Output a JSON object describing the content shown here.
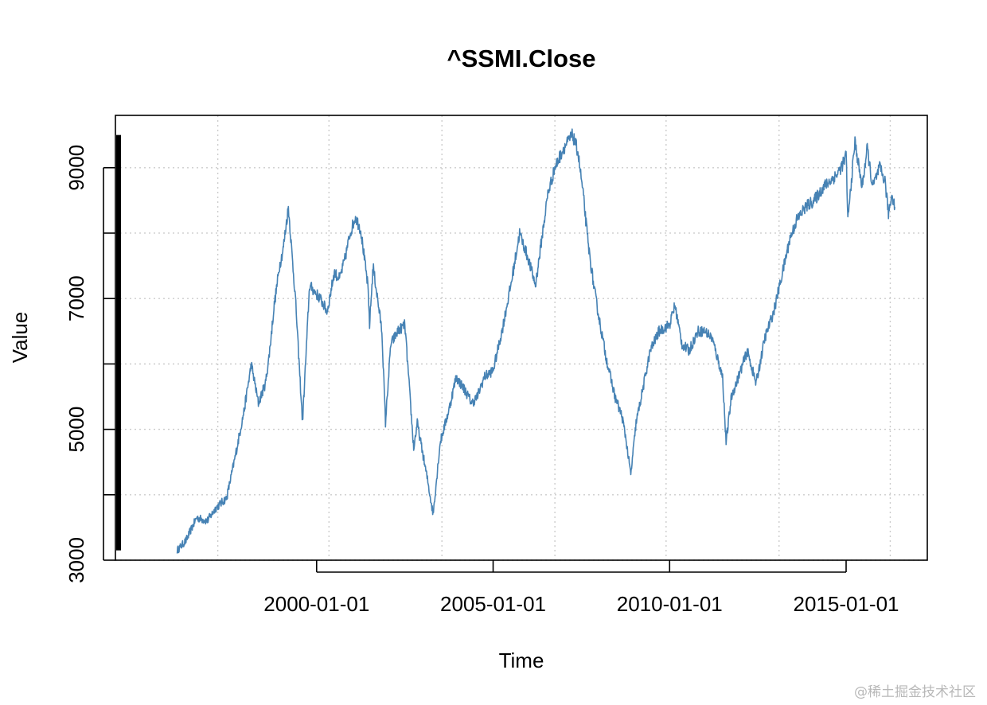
{
  "chart_data": {
    "type": "line",
    "title": "^SSMI.Close",
    "xlabel": "Time",
    "ylabel": "Value",
    "x_ticks": [
      "2000-01-01",
      "2005-01-01",
      "2010-01-01",
      "2015-01-01"
    ],
    "y_ticks": [
      "3000",
      "5000",
      "7000",
      "9000"
    ],
    "xlim": [
      1994.3,
      2017.3
    ],
    "ylim": [
      3000,
      9800
    ],
    "grid": true,
    "line_color": "#4682B4",
    "series": [
      {
        "name": "^SSMI.Close",
        "x": [
          1996.05,
          1996.3,
          1996.6,
          1996.9,
          1997.15,
          1997.45,
          1997.7,
          1997.95,
          1998.15,
          1998.35,
          1998.55,
          1998.65,
          1998.8,
          1998.95,
          1999.05,
          1999.2,
          1999.4,
          1999.6,
          1999.8,
          1999.95,
          2000.1,
          2000.3,
          2000.5,
          2000.65,
          2000.8,
          2000.95,
          2001.1,
          2001.25,
          2001.45,
          2001.5,
          2001.6,
          2001.75,
          2001.85,
          2001.95,
          2002.1,
          2002.3,
          2002.5,
          2002.75,
          2002.85,
          2003.05,
          2003.15,
          2003.3,
          2003.5,
          2003.75,
          2003.95,
          2004.2,
          2004.4,
          2004.55,
          2004.75,
          2005.0,
          2005.25,
          2005.5,
          2005.75,
          2006.0,
          2006.2,
          2006.4,
          2006.55,
          2006.75,
          2007.0,
          2007.25,
          2007.4,
          2007.55,
          2007.7,
          2007.85,
          2008.0,
          2008.2,
          2008.45,
          2008.65,
          2008.75,
          2008.9,
          2009.05,
          2009.2,
          2009.45,
          2009.7,
          2010.0,
          2010.15,
          2010.35,
          2010.55,
          2010.8,
          2011.0,
          2011.2,
          2011.35,
          2011.5,
          2011.6,
          2011.75,
          2011.95,
          2012.2,
          2012.45,
          2012.7,
          2012.95,
          2013.2,
          2013.4,
          2013.6,
          2013.85,
          2014.1,
          2014.35,
          2014.55,
          2014.75,
          2014.95,
          2015.0,
          2015.05,
          2015.25,
          2015.45,
          2015.6,
          2015.75,
          2015.95,
          2016.1,
          2016.2,
          2016.3,
          2016.38
        ],
        "values": [
          3150,
          3300,
          3650,
          3600,
          3800,
          3950,
          4600,
          5300,
          6000,
          5400,
          5700,
          6100,
          6900,
          7500,
          7750,
          8400,
          7000,
          5100,
          7200,
          7100,
          7000,
          6800,
          7400,
          7300,
          7600,
          8000,
          8250,
          8050,
          7200,
          6600,
          7500,
          6900,
          6500,
          5100,
          6300,
          6500,
          6600,
          4700,
          5100,
          4500,
          4200,
          3700,
          4800,
          5300,
          5800,
          5600,
          5400,
          5500,
          5800,
          5900,
          6500,
          7200,
          8000,
          7600,
          7200,
          8000,
          8600,
          9000,
          9300,
          9500,
          9250,
          8600,
          7800,
          7200,
          6700,
          6100,
          5500,
          5200,
          4900,
          4300,
          5100,
          5500,
          6200,
          6500,
          6600,
          6900,
          6300,
          6200,
          6500,
          6500,
          6400,
          6100,
          5800,
          4800,
          5500,
          5800,
          6200,
          5700,
          6400,
          6800,
          7400,
          7900,
          8200,
          8400,
          8500,
          8700,
          8800,
          8900,
          9100,
          9200,
          8200,
          9400,
          8700,
          9300,
          8700,
          9000,
          8800,
          8300,
          8600,
          8400
        ]
      }
    ]
  },
  "watermark": "@稀土掘金技术社区"
}
